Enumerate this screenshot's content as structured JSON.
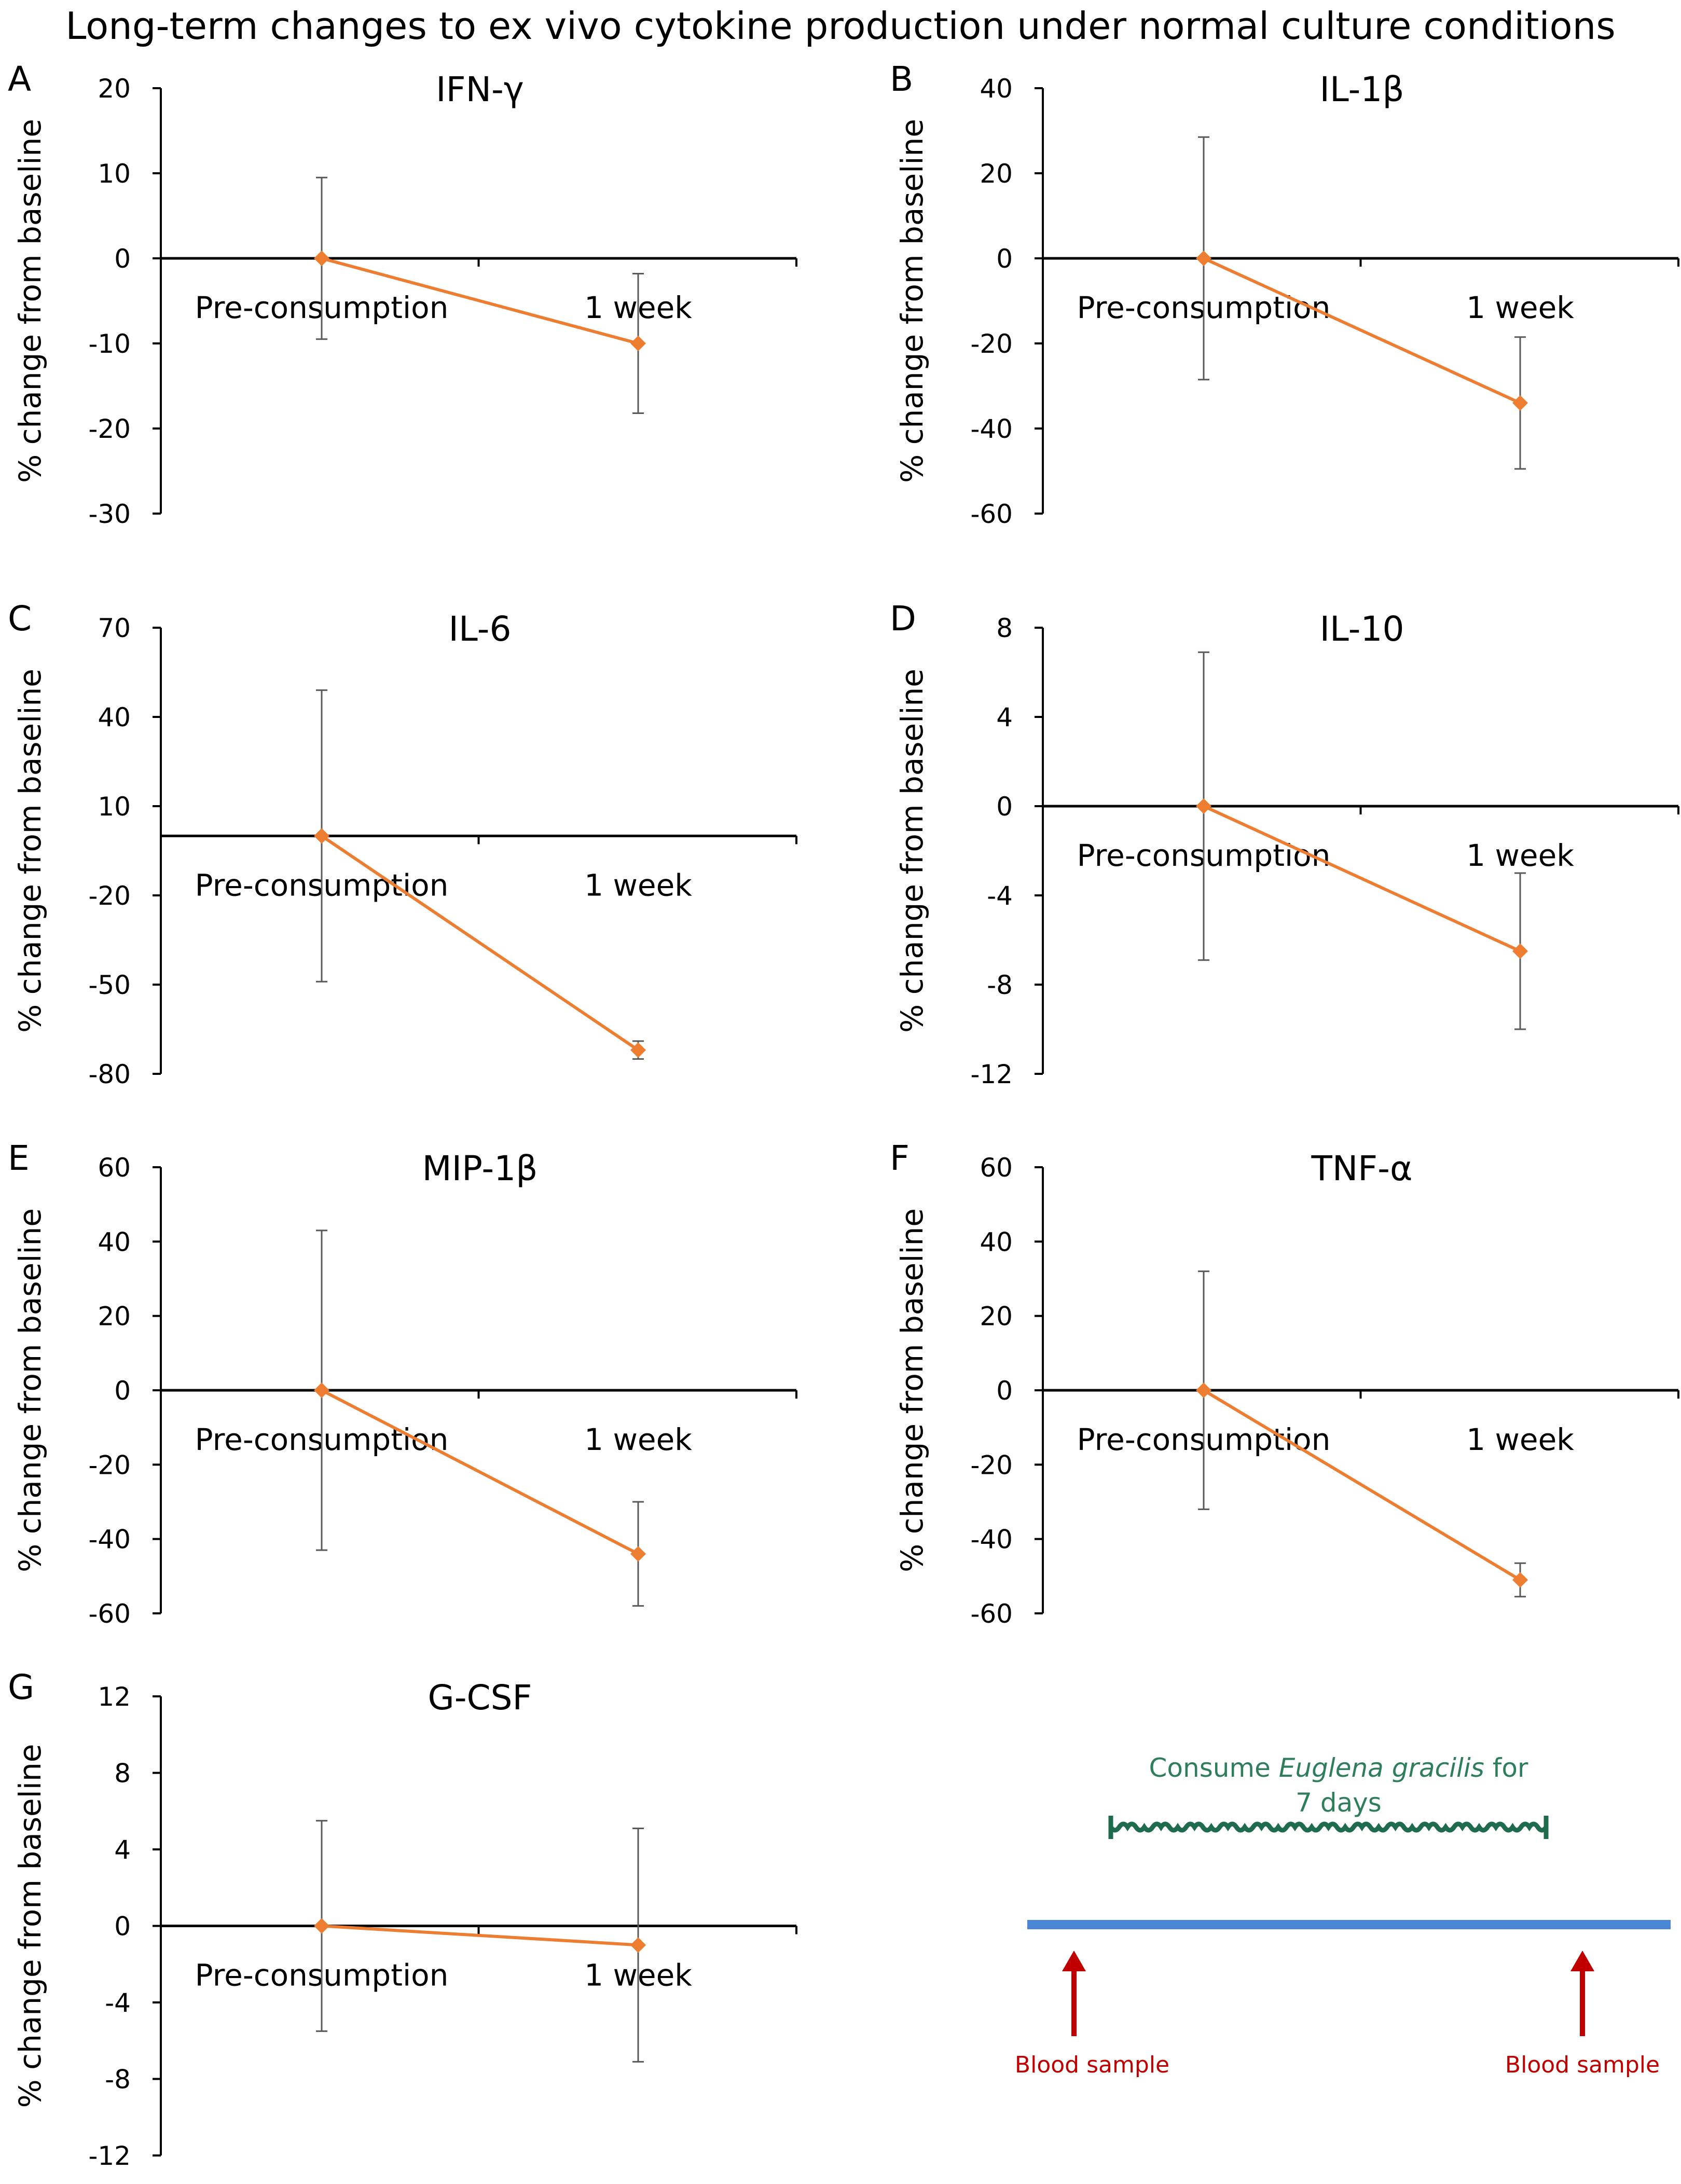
{
  "title": "Long-term changes to ex vivo cytokine production under normal culture conditions",
  "colors": {
    "line": "#ED7D31",
    "axis": "#000000",
    "errorbar": "#595959",
    "timeline": "#4A86D4",
    "wave": "#1E6B4E",
    "arrow": "#C00000",
    "consume_text": "#2E7D5B"
  },
  "chart_data": [
    {
      "type": "line",
      "panel": "A",
      "title": "IFN-γ",
      "ylabel": "% change from baseline",
      "categories": [
        "Pre-consumption",
        "1 week"
      ],
      "values": [
        0,
        -10
      ],
      "errors": [
        9.5,
        8.2
      ],
      "ylim": [
        -30,
        20
      ],
      "yticks": [
        20,
        10,
        0,
        -10,
        -20,
        -30
      ]
    },
    {
      "type": "line",
      "panel": "B",
      "title": "IL-1β",
      "ylabel": "% change from baseline",
      "categories": [
        "Pre-consumption",
        "1 week"
      ],
      "values": [
        0,
        -34
      ],
      "errors": [
        28.5,
        15.5
      ],
      "ylim": [
        -60,
        40
      ],
      "yticks": [
        40,
        20,
        0,
        -20,
        -40,
        -60
      ]
    },
    {
      "type": "line",
      "panel": "C",
      "title": "IL-6",
      "ylabel": "% change from baseline",
      "categories": [
        "Pre-consumption",
        "1 week"
      ],
      "values": [
        0,
        -72
      ],
      "errors": [
        49,
        3
      ],
      "ylim": [
        -80,
        70
      ],
      "yticks": [
        70,
        40,
        10,
        -20,
        -50,
        -80
      ]
    },
    {
      "type": "line",
      "panel": "D",
      "title": "IL-10",
      "ylabel": "% change from baseline",
      "categories": [
        "Pre-consumption",
        "1 week"
      ],
      "values": [
        0,
        -6.5
      ],
      "errors": [
        6.9,
        3.5
      ],
      "ylim": [
        -12,
        8
      ],
      "yticks": [
        8,
        4,
        0,
        -4,
        -8,
        -12
      ]
    },
    {
      "type": "line",
      "panel": "E",
      "title": "MIP-1β",
      "ylabel": "% change from baseline",
      "categories": [
        "Pre-consumption",
        "1 week"
      ],
      "values": [
        0,
        -44
      ],
      "errors": [
        43,
        14
      ],
      "ylim": [
        -60,
        60
      ],
      "yticks": [
        60,
        40,
        20,
        0,
        -20,
        -40,
        -60
      ]
    },
    {
      "type": "line",
      "panel": "F",
      "title": "TNF-α",
      "ylabel": "% change from baseline",
      "categories": [
        "Pre-consumption",
        "1 week"
      ],
      "values": [
        0,
        -51
      ],
      "errors": [
        32,
        4.5
      ],
      "ylim": [
        -60,
        60
      ],
      "yticks": [
        60,
        40,
        20,
        0,
        -20,
        -40,
        -60
      ]
    },
    {
      "type": "line",
      "panel": "G",
      "title": "G-CSF",
      "ylabel": "% change from baseline",
      "categories": [
        "Pre-consumption",
        "1 week"
      ],
      "values": [
        0,
        -1
      ],
      "errors": [
        5.5,
        6.1
      ],
      "ylim": [
        -12,
        12
      ],
      "yticks": [
        12,
        8,
        4,
        0,
        -4,
        -8,
        -12
      ]
    }
  ],
  "timeline": {
    "consume_prefix": "Consume ",
    "consume_species": "Euglena gracilis",
    "consume_suffix": " for",
    "consume_line2": "7 days",
    "left_label": "Blood sample",
    "right_label": "Blood sample"
  }
}
